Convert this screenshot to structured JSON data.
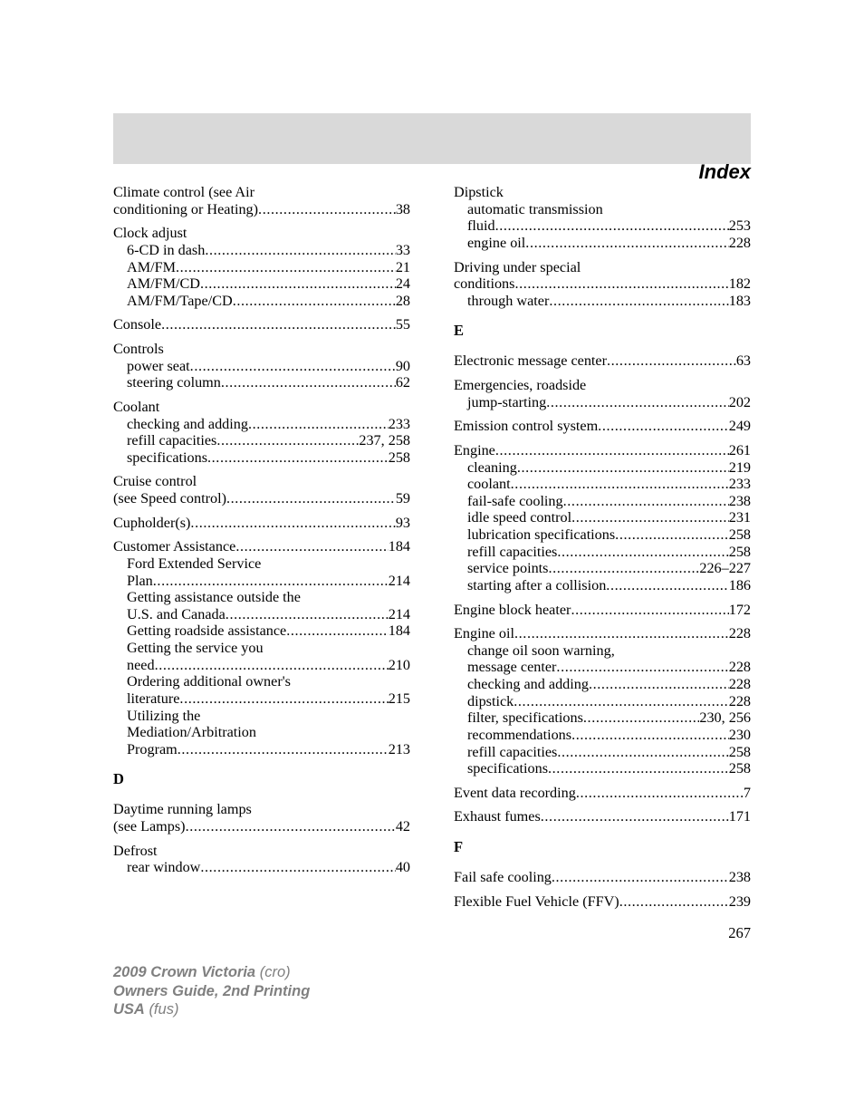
{
  "header": {
    "title": "Index"
  },
  "page_number": "267",
  "footer": {
    "line1_bold": "2009 Crown Victoria",
    "line1_light": "(cro)",
    "line2_bold": "Owners Guide, 2nd Printing",
    "line3_bold": "USA",
    "line3_light": "(fus)"
  },
  "left_col": [
    {
      "type": "entry",
      "rows": [
        {
          "label": "Climate control (see Air",
          "pg": "",
          "noleader": true
        },
        {
          "label": "conditioning or Heating)",
          "pg": "38"
        }
      ]
    },
    {
      "type": "entry",
      "rows": [
        {
          "label": "Clock adjust",
          "pg": "",
          "noleader": true
        },
        {
          "label": "6-CD in dash",
          "pg": "33",
          "sub": true
        },
        {
          "label": "AM/FM",
          "pg": "21",
          "sub": true
        },
        {
          "label": "AM/FM/CD",
          "pg": "24",
          "sub": true
        },
        {
          "label": "AM/FM/Tape/CD",
          "pg": "28",
          "sub": true
        }
      ]
    },
    {
      "type": "entry",
      "rows": [
        {
          "label": "Console",
          "pg": "55"
        }
      ]
    },
    {
      "type": "entry",
      "rows": [
        {
          "label": "Controls",
          "pg": "",
          "noleader": true
        },
        {
          "label": "power seat",
          "pg": "90",
          "sub": true
        },
        {
          "label": "steering column",
          "pg": "62",
          "sub": true
        }
      ]
    },
    {
      "type": "entry",
      "rows": [
        {
          "label": "Coolant",
          "pg": "",
          "noleader": true
        },
        {
          "label": "checking and adding",
          "pg": "233",
          "sub": true
        },
        {
          "label": "refill capacities",
          "pg": "237, 258",
          "sub": true
        },
        {
          "label": "specifications",
          "pg": "258",
          "sub": true
        }
      ]
    },
    {
      "type": "entry",
      "rows": [
        {
          "label": "Cruise control",
          "pg": "",
          "noleader": true
        },
        {
          "label": "(see Speed control)",
          "pg": "59"
        }
      ]
    },
    {
      "type": "entry",
      "rows": [
        {
          "label": "Cupholder(s)",
          "pg": "93"
        }
      ]
    },
    {
      "type": "entry",
      "rows": [
        {
          "label": "Customer Assistance",
          "pg": "184"
        },
        {
          "label": "Ford Extended Service",
          "pg": "",
          "noleader": true,
          "sub": true
        },
        {
          "label": "Plan",
          "pg": "214",
          "sub": true
        },
        {
          "label": "Getting assistance outside the",
          "pg": "",
          "noleader": true,
          "sub": true
        },
        {
          "label": "U.S. and Canada",
          "pg": "214",
          "sub": true
        },
        {
          "label": "Getting roadside assistance",
          "pg": "184",
          "sub": true
        },
        {
          "label": "Getting the service you",
          "pg": "",
          "noleader": true,
          "sub": true
        },
        {
          "label": "need",
          "pg": "210",
          "sub": true
        },
        {
          "label": "Ordering additional owner's",
          "pg": "",
          "noleader": true,
          "sub": true
        },
        {
          "label": "literature",
          "pg": "215",
          "sub": true
        },
        {
          "label": "Utilizing the",
          "pg": "",
          "noleader": true,
          "sub": true
        },
        {
          "label": "Mediation/Arbitration",
          "pg": "",
          "noleader": true,
          "sub": true
        },
        {
          "label": "Program",
          "pg": "213",
          "sub": true
        }
      ]
    },
    {
      "type": "letter",
      "text": "D"
    },
    {
      "type": "entry",
      "rows": [
        {
          "label": "Daytime running lamps",
          "pg": "",
          "noleader": true
        },
        {
          "label": "(see Lamps)",
          "pg": "42"
        }
      ]
    },
    {
      "type": "entry",
      "rows": [
        {
          "label": "Defrost",
          "pg": "",
          "noleader": true
        },
        {
          "label": "rear window",
          "pg": "40",
          "sub": true
        }
      ]
    }
  ],
  "right_col": [
    {
      "type": "entry",
      "rows": [
        {
          "label": "Dipstick",
          "pg": "",
          "noleader": true
        },
        {
          "label": "automatic transmission",
          "pg": "",
          "noleader": true,
          "sub": true
        },
        {
          "label": "fluid",
          "pg": "253",
          "sub": true
        },
        {
          "label": "engine oil",
          "pg": "228",
          "sub": true
        }
      ]
    },
    {
      "type": "entry",
      "rows": [
        {
          "label": "Driving under special",
          "pg": "",
          "noleader": true
        },
        {
          "label": "conditions",
          "pg": "182"
        },
        {
          "label": "through water",
          "pg": "183",
          "sub": true
        }
      ]
    },
    {
      "type": "letter",
      "text": "E"
    },
    {
      "type": "entry",
      "rows": [
        {
          "label": "Electronic message center",
          "pg": "63"
        }
      ]
    },
    {
      "type": "entry",
      "rows": [
        {
          "label": "Emergencies, roadside",
          "pg": "",
          "noleader": true
        },
        {
          "label": "jump-starting",
          "pg": "202",
          "sub": true
        }
      ]
    },
    {
      "type": "entry",
      "rows": [
        {
          "label": "Emission control system",
          "pg": "249"
        }
      ]
    },
    {
      "type": "entry",
      "rows": [
        {
          "label": "Engine",
          "pg": "261"
        },
        {
          "label": "cleaning",
          "pg": "219",
          "sub": true
        },
        {
          "label": "coolant",
          "pg": "233",
          "sub": true
        },
        {
          "label": "fail-safe cooling",
          "pg": "238",
          "sub": true
        },
        {
          "label": "idle speed control",
          "pg": "231",
          "sub": true
        },
        {
          "label": "lubrication specifications",
          "pg": "258",
          "sub": true
        },
        {
          "label": "refill capacities",
          "pg": "258",
          "sub": true
        },
        {
          "label": "service points",
          "pg": "226–227",
          "sub": true
        },
        {
          "label": "starting after a collision",
          "pg": "186",
          "sub": true
        }
      ]
    },
    {
      "type": "entry",
      "rows": [
        {
          "label": "Engine block heater",
          "pg": "172"
        }
      ]
    },
    {
      "type": "entry",
      "rows": [
        {
          "label": "Engine oil",
          "pg": "228"
        },
        {
          "label": "change oil soon warning,",
          "pg": "",
          "noleader": true,
          "sub": true
        },
        {
          "label": "message center",
          "pg": "228",
          "sub": true
        },
        {
          "label": "checking and adding",
          "pg": "228",
          "sub": true
        },
        {
          "label": "dipstick",
          "pg": "228",
          "sub": true
        },
        {
          "label": "filter, specifications",
          "pg": "230, 256",
          "sub": true
        },
        {
          "label": "recommendations",
          "pg": "230",
          "sub": true
        },
        {
          "label": "refill capacities",
          "pg": "258",
          "sub": true
        },
        {
          "label": "specifications",
          "pg": "258",
          "sub": true
        }
      ]
    },
    {
      "type": "entry",
      "rows": [
        {
          "label": "Event data recording",
          "pg": "7"
        }
      ]
    },
    {
      "type": "entry",
      "rows": [
        {
          "label": "Exhaust fumes",
          "pg": "171"
        }
      ]
    },
    {
      "type": "letter",
      "text": "F"
    },
    {
      "type": "entry",
      "rows": [
        {
          "label": "Fail safe cooling",
          "pg": "238"
        }
      ]
    },
    {
      "type": "entry",
      "rows": [
        {
          "label": "Flexible Fuel Vehicle (FFV)",
          "pg": "239"
        }
      ]
    }
  ]
}
